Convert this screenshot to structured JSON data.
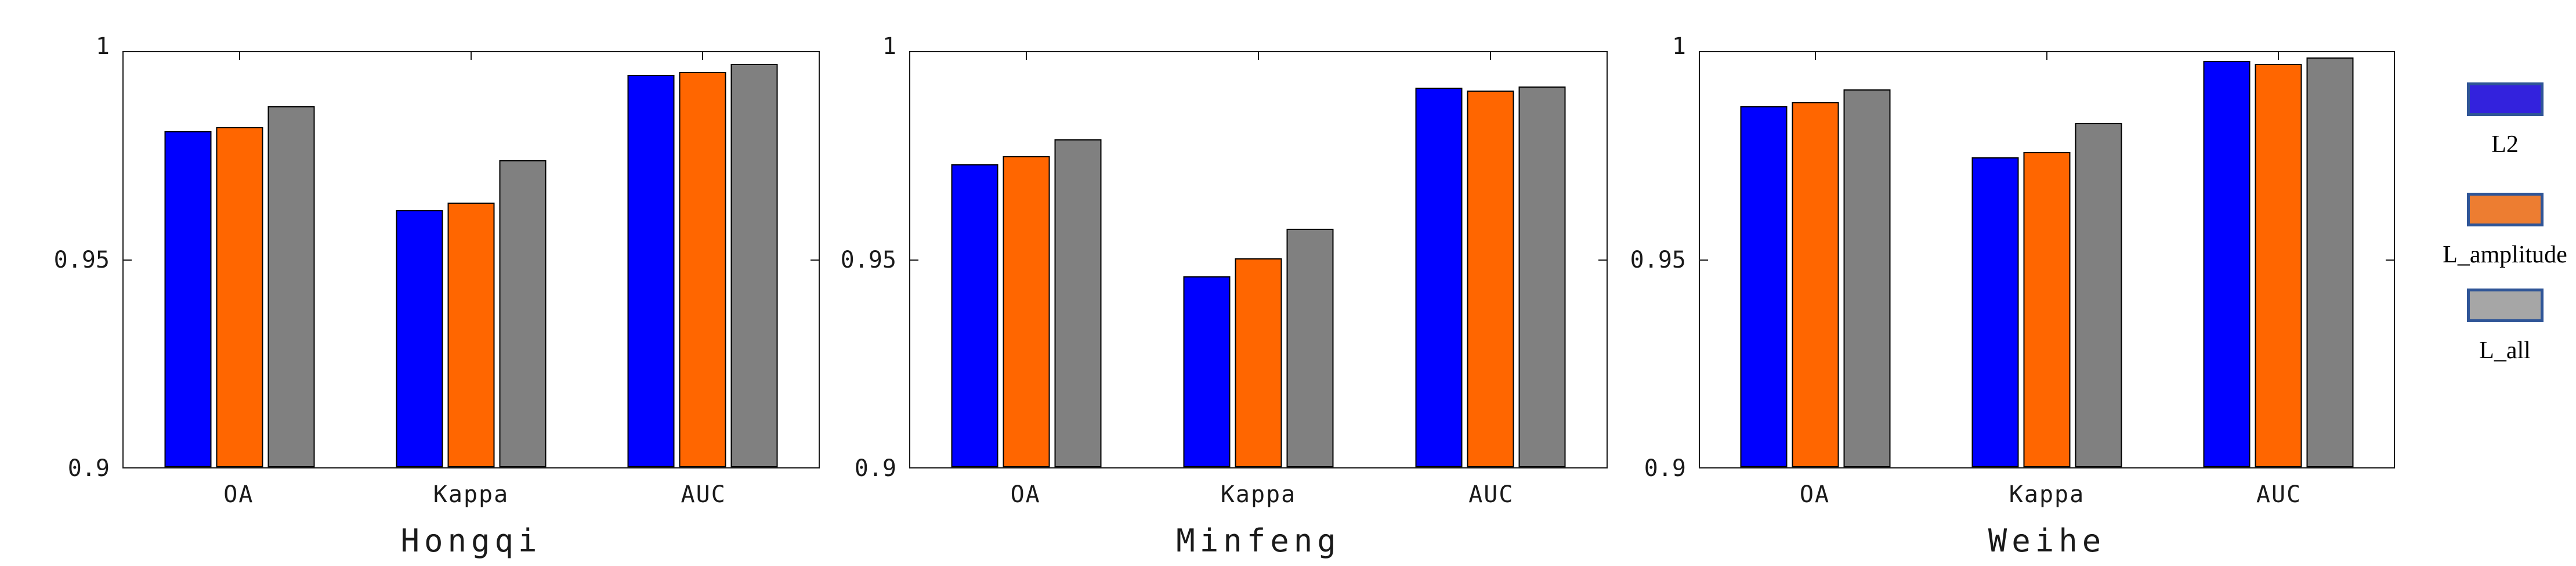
{
  "colors": {
    "background": "#ffffff",
    "axis": "#1a1a1a",
    "bar_outline": "#000000",
    "bar_blue": "#0000FF",
    "bar_orange": "#FF6600",
    "bar_gray": "#808080",
    "legend_border": "#2F5597"
  },
  "axis": {
    "ylim": [
      0.9,
      1.0
    ],
    "yticks": [
      {
        "label": "1",
        "value": 1.0
      },
      {
        "label": "0.95",
        "value": 0.95
      },
      {
        "label": "0.9",
        "value": 0.9
      }
    ]
  },
  "legend": {
    "items": [
      {
        "label": "L2",
        "color": "#3322DD"
      },
      {
        "label": "L_amplitude",
        "color": "#ED7D31"
      },
      {
        "label": "L_all",
        "color": "#A6A6A6"
      }
    ]
  },
  "chart_data": [
    {
      "type": "bar",
      "title": "Hongqi",
      "categories": [
        "OA",
        "Kappa",
        "AUC"
      ],
      "series": [
        {
          "name": "L2",
          "color": "#0000FF",
          "values": [
            0.981,
            0.962,
            0.9946
          ]
        },
        {
          "name": "L_amplitude",
          "color": "#FF6600",
          "values": [
            0.982,
            0.9638,
            0.9952
          ]
        },
        {
          "name": "L_all",
          "color": "#808080",
          "values": [
            0.987,
            0.974,
            0.9972
          ]
        }
      ],
      "xlabel": "",
      "ylabel": "",
      "ylim": [
        0.9,
        1.0
      ],
      "yticks": [
        0.9,
        0.95,
        1.0
      ],
      "grid": false
    },
    {
      "type": "bar",
      "title": "Minfeng",
      "categories": [
        "OA",
        "Kappa",
        "AUC"
      ],
      "series": [
        {
          "name": "L2",
          "color": "#0000FF",
          "values": [
            0.973,
            0.946,
            0.9915
          ]
        },
        {
          "name": "L_amplitude",
          "color": "#FF6600",
          "values": [
            0.975,
            0.9503,
            0.9908
          ]
        },
        {
          "name": "L_all",
          "color": "#808080",
          "values": [
            0.979,
            0.9575,
            0.9918
          ]
        }
      ],
      "xlabel": "",
      "ylabel": "",
      "ylim": [
        0.9,
        1.0
      ],
      "yticks": [
        0.9,
        0.95,
        1.0
      ],
      "grid": false
    },
    {
      "type": "bar",
      "title": "Weihe",
      "categories": [
        "OA",
        "Kappa",
        "AUC"
      ],
      "series": [
        {
          "name": "L2",
          "color": "#0000FF",
          "values": [
            0.987,
            0.9747,
            0.9979
          ]
        },
        {
          "name": "L_amplitude",
          "color": "#FF6600",
          "values": [
            0.988,
            0.976,
            0.9972
          ]
        },
        {
          "name": "L_all",
          "color": "#808080",
          "values": [
            0.991,
            0.983,
            0.9988
          ]
        }
      ],
      "xlabel": "",
      "ylabel": "",
      "ylim": [
        0.9,
        1.0
      ],
      "yticks": [
        0.9,
        0.95,
        1.0
      ],
      "grid": false
    }
  ]
}
